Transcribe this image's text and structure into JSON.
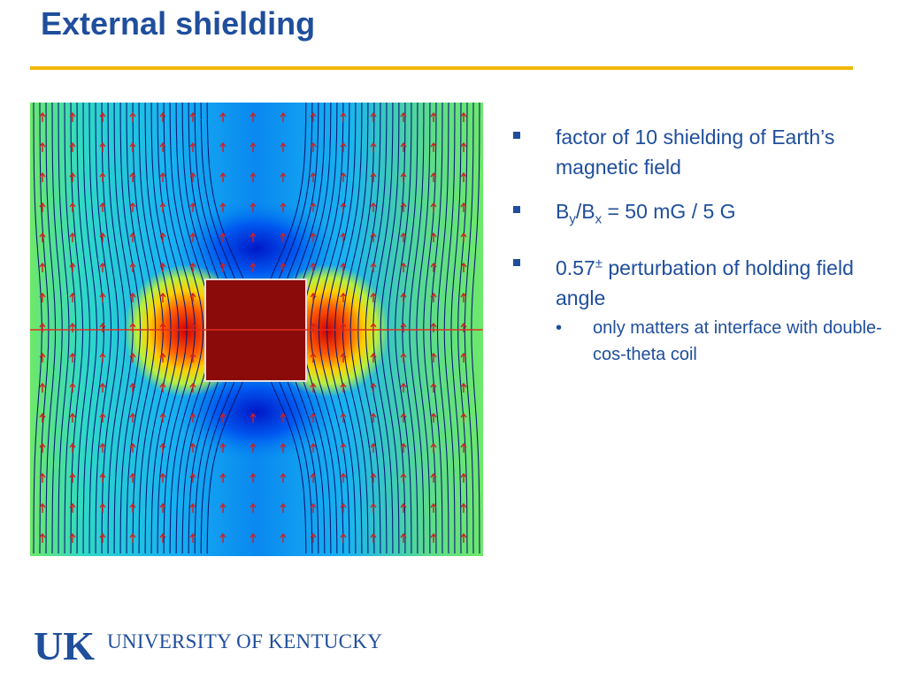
{
  "slide": {
    "title": "External shielding",
    "colors": {
      "title": "#1f4e9c",
      "rule": "#f2b705",
      "text": "#1f4e9c"
    }
  },
  "figure": {
    "description_icon": "magnetic-field-map-image"
  },
  "bullets": {
    "item1": "factor of 10 shielding of Earth’s magnetic field",
    "item2": {
      "b": "B",
      "y": "y",
      "slash": "/B",
      "x": "x",
      "rest": " = 50 mG / 5 G"
    },
    "item3": {
      "value": "0.57",
      "symbol": "±",
      "rest": " perturbation of holding field angle"
    },
    "sub1": "only matters at interface with double-cos-theta coil"
  },
  "logo": {
    "letters": "UK",
    "name": "UNIVERSITY OF KENTUCKY"
  }
}
